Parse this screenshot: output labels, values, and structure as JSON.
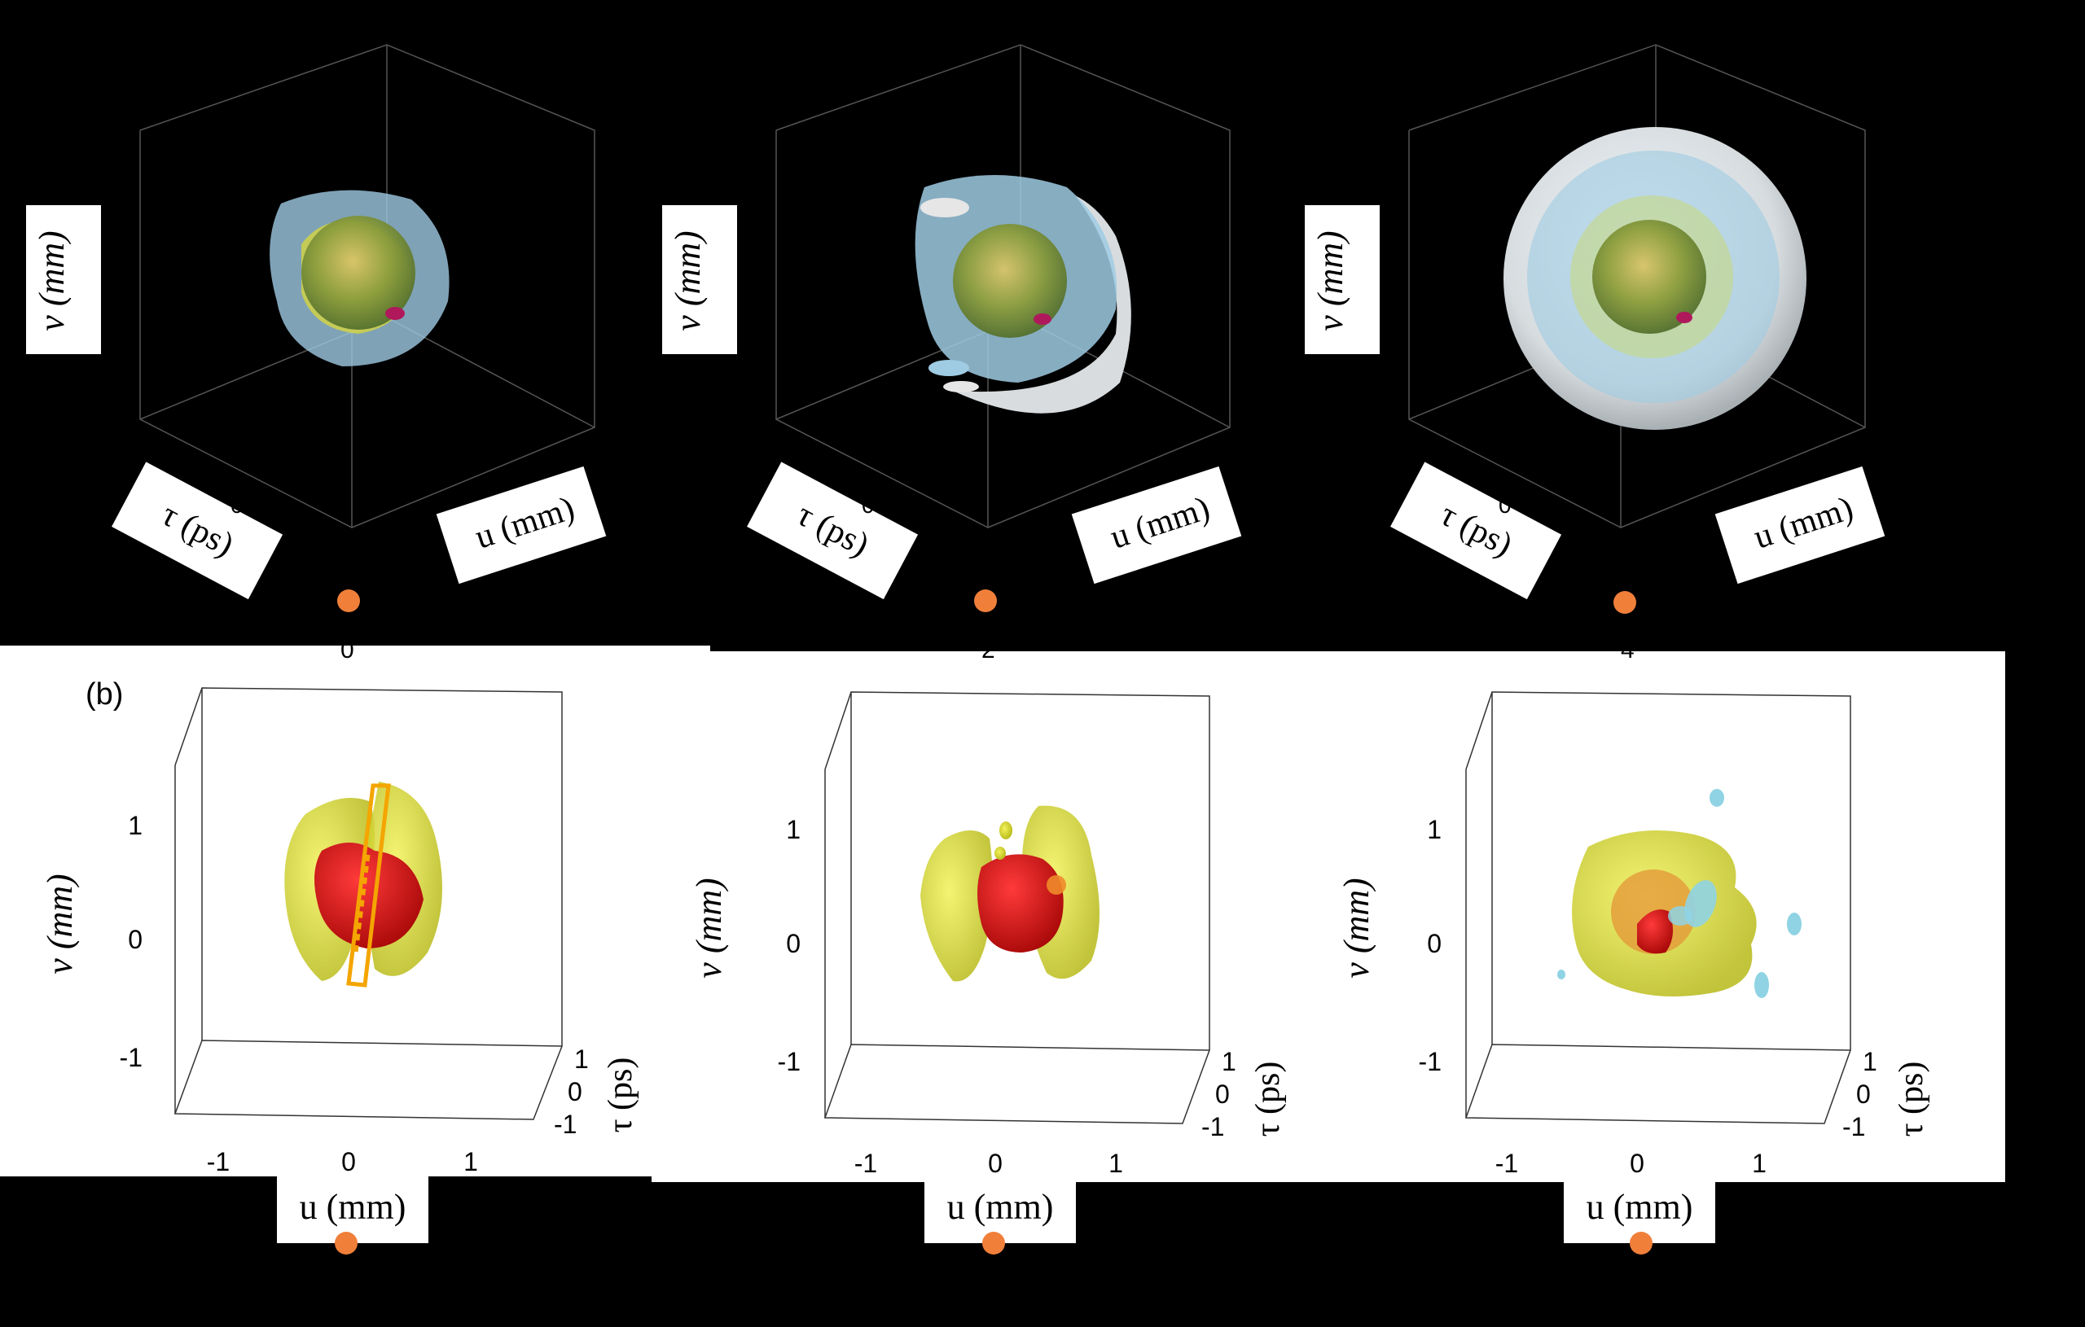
{
  "figure": {
    "panel_b_label": "(b)",
    "top_labels": {
      "v_axis": "v (mm)",
      "tau_axis": "τ (ps)",
      "u_axis": "u (mm)",
      "zero": "0"
    },
    "bottom_labels": {
      "v_axis": "v (mm)",
      "tau_axis": "τ (ps)",
      "u_axis": "u (mm)"
    },
    "separator_values": [
      "0",
      "2",
      "4"
    ],
    "ticks": {
      "uv": [
        "-1",
        "0",
        "1"
      ],
      "tau": [
        "-1",
        "0",
        "1"
      ]
    },
    "colors": {
      "background": "#000000",
      "panel_bg": "#ffffff",
      "marker": "#f07f3a",
      "red": "#d40f0f",
      "yellow": "#d8d81a",
      "cyan": "#8fd3e4",
      "grey": "#d9d9d9",
      "box": "#f4a500"
    },
    "icons": [
      "orange-dot-marker"
    ]
  }
}
